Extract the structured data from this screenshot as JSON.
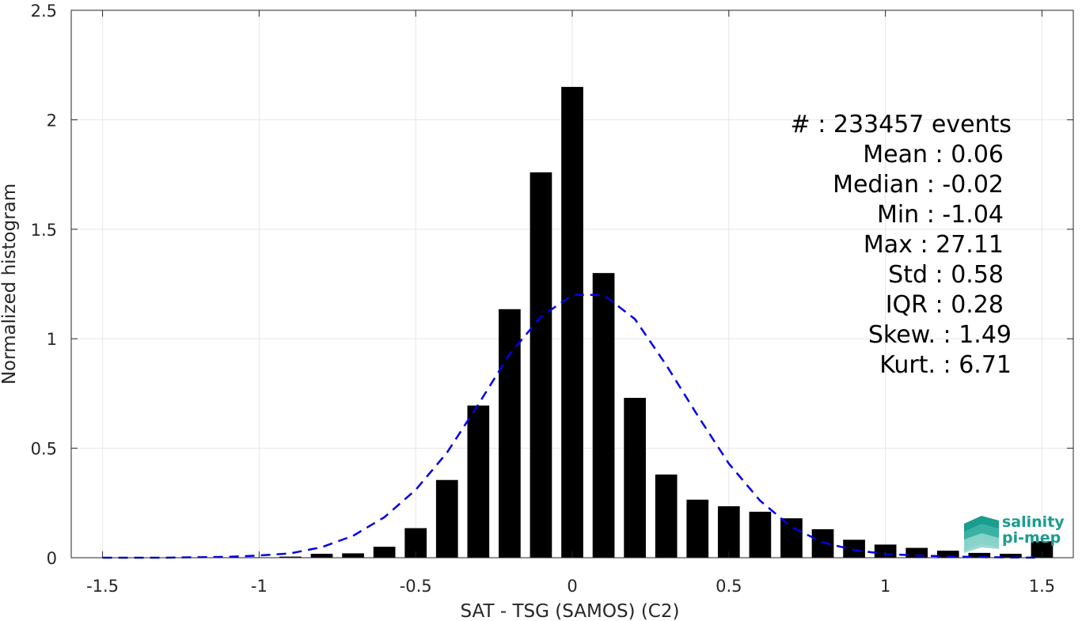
{
  "chart_data": {
    "type": "bar",
    "xlabel": "SAT - TSG (SAMOS) (C2)",
    "ylabel": "Normalized histogram",
    "xlim": [
      -1.6,
      1.6
    ],
    "ylim": [
      0,
      2.5
    ],
    "grid": true,
    "x_ticks": [
      -1.5,
      -1,
      -0.5,
      0,
      0.5,
      1,
      1.5
    ],
    "x_tick_labels": [
      "-1.5",
      "-1",
      "-0.5",
      "0",
      "0.5",
      "1",
      "1.5"
    ],
    "y_ticks": [
      0,
      0.5,
      1,
      1.5,
      2,
      2.5
    ],
    "y_tick_labels": [
      "0",
      "0.5",
      "1",
      "1.5",
      "2",
      "2.5"
    ],
    "bar_width": 0.07,
    "series": [
      {
        "type": "bar",
        "color": "#000000",
        "x": [
          -1.5,
          -1.4,
          -1.3,
          -1.2,
          -1.1,
          -1.0,
          -0.9,
          -0.8,
          -0.7,
          -0.6,
          -0.5,
          -0.4,
          -0.3,
          -0.2,
          -0.1,
          0.0,
          0.1,
          0.2,
          0.3,
          0.4,
          0.5,
          0.6,
          0.7,
          0.8,
          0.9,
          1.0,
          1.1,
          1.2,
          1.3,
          1.4,
          1.5
        ],
        "values": [
          0,
          0,
          0,
          0,
          0,
          0.002,
          0.005,
          0.018,
          0.02,
          0.05,
          0.135,
          0.355,
          0.695,
          1.135,
          1.76,
          2.15,
          1.3,
          0.73,
          0.38,
          0.265,
          0.235,
          0.21,
          0.18,
          0.13,
          0.082,
          0.06,
          0.045,
          0.032,
          0.022,
          0.018,
          0.075
        ]
      },
      {
        "type": "line",
        "style": "dashed",
        "color": "#0000e6",
        "x": [
          -1.5,
          -1.4,
          -1.3,
          -1.2,
          -1.1,
          -1.0,
          -0.9,
          -0.8,
          -0.7,
          -0.6,
          -0.5,
          -0.4,
          -0.3,
          -0.2,
          -0.1,
          0.0,
          0.1,
          0.2,
          0.3,
          0.4,
          0.5,
          0.6,
          0.7,
          0.8,
          0.9,
          1.0,
          1.1,
          1.2,
          1.3,
          1.4,
          1.5
        ],
        "values": [
          0.0,
          0.0,
          0.0,
          0.002,
          0.004,
          0.01,
          0.02,
          0.048,
          0.1,
          0.185,
          0.31,
          0.48,
          0.7,
          0.93,
          1.1,
          1.2,
          1.2,
          1.09,
          0.88,
          0.65,
          0.43,
          0.26,
          0.14,
          0.07,
          0.035,
          0.017,
          0.01,
          0.006,
          0.003,
          0.001,
          0.0
        ]
      }
    ],
    "annotations": [
      "#  : 233457 events",
      "Mean : 0.06",
      "Median : -0.02",
      "Min : -1.04",
      "Max : 27.11",
      "Std : 0.58",
      "IQR : 0.28",
      "Skew. : 1.49",
      "Kurt. : 6.71"
    ]
  },
  "logo": {
    "line1": "salinity",
    "line2": "pi-mep",
    "colors": [
      "#1a9c8f",
      "#3fb6a8",
      "#8fd6cc"
    ]
  },
  "colors": {
    "bars": "#000000",
    "fit_line": "#0000e6",
    "grid": "#e6e6e6",
    "axes": "#262626"
  }
}
